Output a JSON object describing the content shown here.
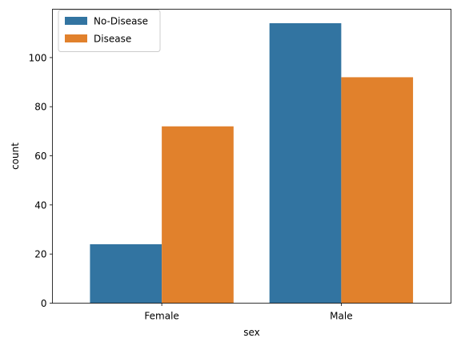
{
  "chart_data": {
    "type": "bar",
    "categories": [
      "Female",
      "Male"
    ],
    "series": [
      {
        "name": "No-Disease",
        "values": [
          24,
          114
        ],
        "color": "#3274a1"
      },
      {
        "name": "Disease",
        "values": [
          72,
          92
        ],
        "color": "#e1812c"
      }
    ],
    "xlabel": "sex",
    "ylabel": "count",
    "ylim": [
      0,
      119.7
    ],
    "yticks": [
      0,
      20,
      40,
      60,
      80,
      100
    ],
    "legend": "top-left",
    "grid": false
  }
}
